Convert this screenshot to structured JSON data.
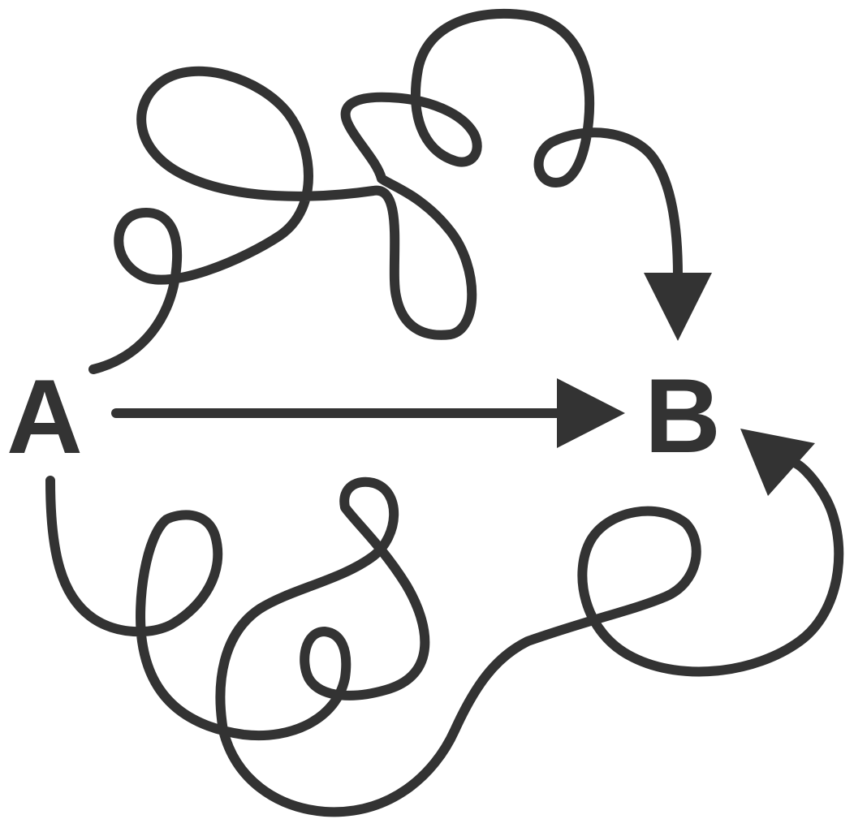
{
  "diagram": {
    "title": "",
    "nodes": {
      "start": {
        "label": "A"
      },
      "end": {
        "label": "B"
      }
    },
    "paths": [
      {
        "id": "direct",
        "from": "A",
        "to": "B",
        "style": "straight"
      },
      {
        "id": "upper",
        "from": "A",
        "to": "B",
        "style": "tangled loops"
      },
      {
        "id": "lower",
        "from": "A",
        "to": "B",
        "style": "tangled loops"
      }
    ],
    "colors": {
      "ink": "#333333",
      "background": "#ffffff"
    }
  }
}
